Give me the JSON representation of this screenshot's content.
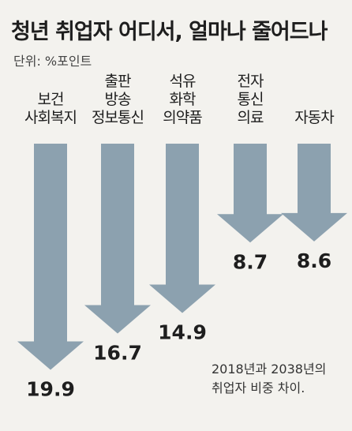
{
  "title": "청년 취업자 어디서, 얼마나 줄어드나",
  "unit": "단위: %포인트",
  "note_lines": [
    "2018년과 2038년의",
    "취업자 비중 차이."
  ],
  "colors": {
    "arrow": "#8ca1af",
    "background": "#f3f2ee"
  },
  "chart_data": {
    "type": "bar",
    "orientation": "downward-arrows",
    "title": "청년 취업자 어디서, 얼마나 줄어드나",
    "ylabel": "단위: %포인트",
    "categories": [
      [
        "보건",
        "사회복지"
      ],
      [
        "출판",
        "방송",
        "정보통신"
      ],
      [
        "석유",
        "화학",
        "의약품"
      ],
      [
        "전자",
        "통신",
        "의료"
      ],
      [
        "자동차"
      ]
    ],
    "values": [
      19.9,
      16.7,
      14.9,
      8.7,
      8.6
    ],
    "value_labels": [
      "19.9",
      "16.7",
      "14.9",
      "8.7",
      "8.6"
    ],
    "ylim": [
      0,
      20
    ],
    "grid": false,
    "legend": "none"
  }
}
